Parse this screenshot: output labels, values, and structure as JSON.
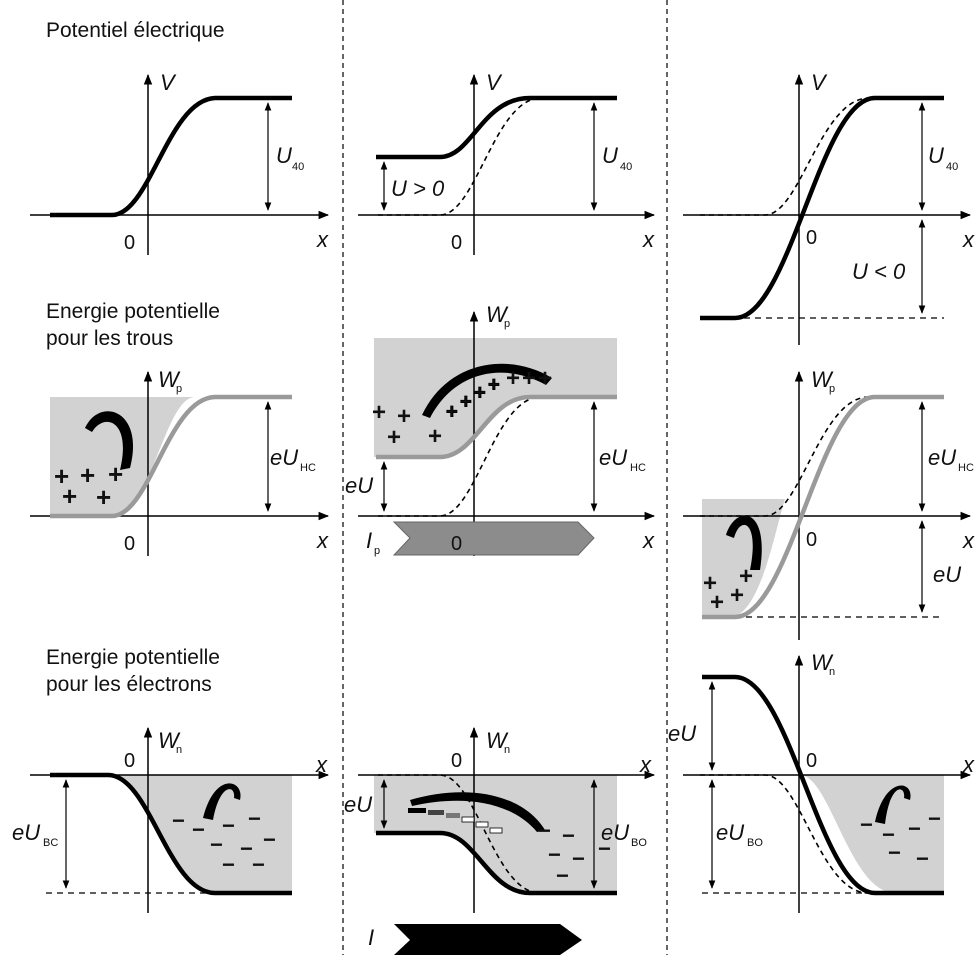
{
  "section_titles": {
    "potential": "Potentiel électrique",
    "holes_line1": "Energie potentielle",
    "holes_line2": "pour les trous",
    "electrons_line1": "Energie potentielle",
    "electrons_line2": "pour les électrons"
  },
  "axis_labels": {
    "V": "V",
    "x": "x",
    "zero": "0",
    "Wp": "W",
    "Wp_sub": "p",
    "Wn": "W",
    "Wn_sub": "n"
  },
  "annotations": {
    "U_sub": "40",
    "U_pos": "U > 0",
    "U_neg": "U < 0",
    "U": "U",
    "eU": "eU",
    "eU_sub_holes": "HC",
    "eU_sub_electrons": "BC",
    "eU_sub_electrons_mid": "BO",
    "Ip": "I",
    "Ip_sub": "p",
    "In": "I",
    "plus": "+",
    "minus": "−"
  },
  "colors": {
    "line": "#000000",
    "gray_curve": "#9a9a9a",
    "band_fill": "#d2d2d2",
    "plus_sign": "#0f4a3c",
    "arrow_fill": "#888888"
  }
}
